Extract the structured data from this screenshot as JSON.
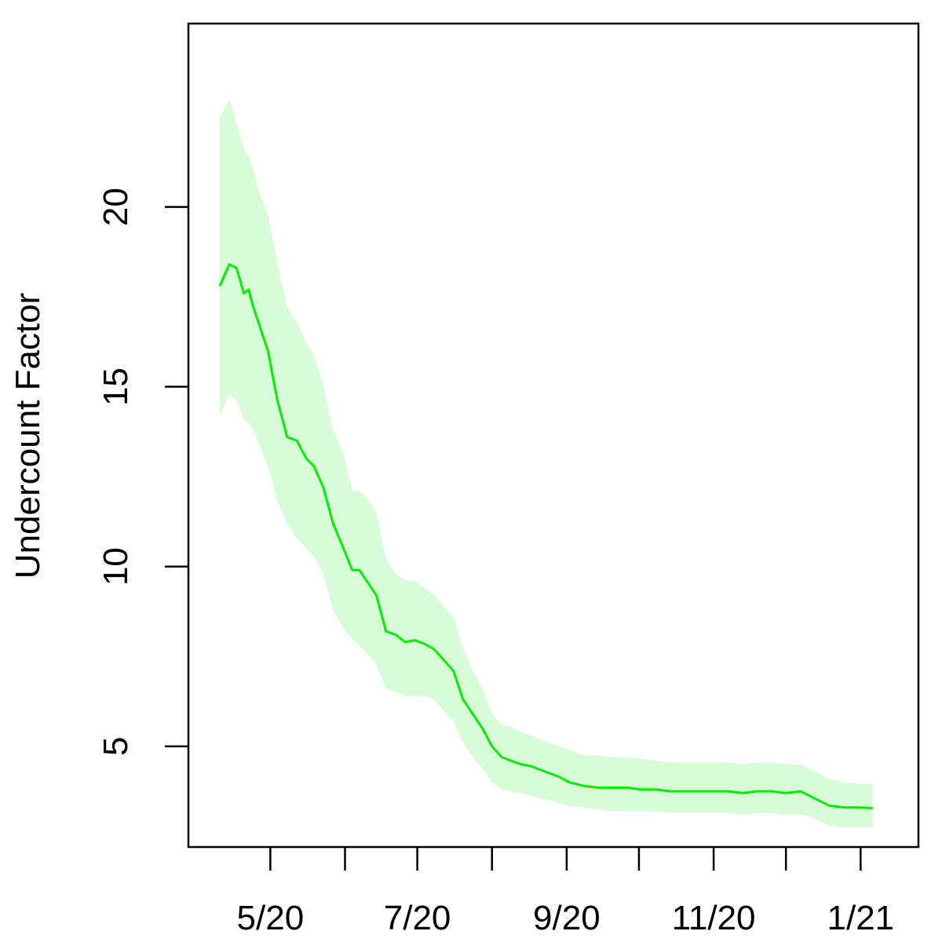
{
  "chart_data": {
    "type": "line",
    "title": "",
    "xlabel": "",
    "ylabel": "Undercount Factor",
    "x_unit": "date",
    "xlim": [
      "2020-03-28",
      "2021-01-25"
    ],
    "ylim": [
      2.2,
      25.1
    ],
    "grid": false,
    "legend": "none",
    "x_tick_labels": [
      {
        "date": "2020-05-01",
        "label": "5/20"
      },
      {
        "date": "2020-07-01",
        "label": "7/20"
      },
      {
        "date": "2020-09-01",
        "label": "9/20"
      },
      {
        "date": "2020-11-01",
        "label": "11/20"
      },
      {
        "date": "2021-01-01",
        "label": "1/21"
      }
    ],
    "x_minor_ticks": [
      "2020-06-01",
      "2020-08-01",
      "2020-10-01",
      "2020-12-01"
    ],
    "y_ticks": [
      5,
      10,
      15,
      20
    ],
    "y_tick_labels": [
      "5",
      "10",
      "15",
      "20"
    ],
    "colors": {
      "line": "#00ee00",
      "band": "#d8fcd8",
      "axis": "#000000"
    },
    "series": [
      {
        "x": [
          "2020-04-10",
          "2020-04-14",
          "2020-04-17",
          "2020-04-20",
          "2020-04-22",
          "2020-04-24",
          "2020-04-27",
          "2020-04-30",
          "2020-05-04",
          "2020-05-08",
          "2020-05-12",
          "2020-05-16",
          "2020-05-19",
          "2020-05-23",
          "2020-05-27",
          "2020-06-01",
          "2020-06-04",
          "2020-06-07",
          "2020-06-10",
          "2020-06-14",
          "2020-06-18",
          "2020-06-22",
          "2020-06-26",
          "2020-06-30",
          "2020-07-04",
          "2020-07-08",
          "2020-07-12",
          "2020-07-16",
          "2020-07-20",
          "2020-07-24",
          "2020-07-28",
          "2020-08-01",
          "2020-08-05",
          "2020-08-09",
          "2020-08-13",
          "2020-08-17",
          "2020-08-21",
          "2020-08-25",
          "2020-08-29",
          "2020-09-02",
          "2020-09-08",
          "2020-09-14",
          "2020-09-20",
          "2020-09-26",
          "2020-10-02",
          "2020-10-08",
          "2020-10-14",
          "2020-10-20",
          "2020-10-26",
          "2020-11-01",
          "2020-11-07",
          "2020-11-13",
          "2020-11-19",
          "2020-11-25",
          "2020-12-01",
          "2020-12-07",
          "2020-12-13",
          "2020-12-19",
          "2020-12-25",
          "2020-12-31",
          "2021-01-06"
        ],
        "y": [
          17.8,
          18.4,
          18.3,
          17.6,
          17.7,
          17.2,
          16.6,
          16.0,
          14.6,
          13.6,
          13.5,
          13.0,
          12.8,
          12.2,
          11.2,
          10.4,
          9.9,
          9.9,
          9.6,
          9.2,
          8.2,
          8.1,
          7.9,
          7.95,
          7.85,
          7.7,
          7.4,
          7.1,
          6.3,
          5.9,
          5.5,
          5.0,
          4.7,
          4.6,
          4.5,
          4.45,
          4.35,
          4.25,
          4.15,
          4.0,
          3.9,
          3.85,
          3.85,
          3.85,
          3.8,
          3.8,
          3.75,
          3.75,
          3.75,
          3.75,
          3.75,
          3.7,
          3.75,
          3.75,
          3.7,
          3.75,
          3.55,
          3.35,
          3.3,
          3.3,
          3.28
        ]
      }
    ],
    "band": {
      "x": [
        "2020-04-10",
        "2020-04-14",
        "2020-04-17",
        "2020-04-20",
        "2020-04-22",
        "2020-04-24",
        "2020-04-27",
        "2020-04-30",
        "2020-05-04",
        "2020-05-08",
        "2020-05-12",
        "2020-05-16",
        "2020-05-19",
        "2020-05-23",
        "2020-05-27",
        "2020-06-01",
        "2020-06-04",
        "2020-06-07",
        "2020-06-10",
        "2020-06-14",
        "2020-06-18",
        "2020-06-22",
        "2020-06-26",
        "2020-06-30",
        "2020-07-04",
        "2020-07-08",
        "2020-07-12",
        "2020-07-16",
        "2020-07-20",
        "2020-07-24",
        "2020-07-28",
        "2020-08-01",
        "2020-08-05",
        "2020-08-09",
        "2020-08-13",
        "2020-08-17",
        "2020-08-21",
        "2020-08-25",
        "2020-08-29",
        "2020-09-02",
        "2020-09-08",
        "2020-09-14",
        "2020-09-20",
        "2020-09-26",
        "2020-10-02",
        "2020-10-08",
        "2020-10-14",
        "2020-10-20",
        "2020-10-26",
        "2020-11-01",
        "2020-11-07",
        "2020-11-13",
        "2020-11-19",
        "2020-11-25",
        "2020-12-01",
        "2020-12-07",
        "2020-12-13",
        "2020-12-19",
        "2020-12-25",
        "2020-12-31",
        "2021-01-06"
      ],
      "lower": [
        14.2,
        14.8,
        14.6,
        14.1,
        14.0,
        13.8,
        13.3,
        12.8,
        11.8,
        11.2,
        10.8,
        10.5,
        10.3,
        9.8,
        8.8,
        8.2,
        8.0,
        7.8,
        7.6,
        7.3,
        6.6,
        6.5,
        6.4,
        6.4,
        6.4,
        6.3,
        6.0,
        5.7,
        5.1,
        4.7,
        4.4,
        4.0,
        3.8,
        3.75,
        3.7,
        3.65,
        3.55,
        3.5,
        3.4,
        3.35,
        3.3,
        3.25,
        3.2,
        3.2,
        3.2,
        3.2,
        3.15,
        3.15,
        3.15,
        3.15,
        3.15,
        3.1,
        3.15,
        3.15,
        3.1,
        3.1,
        3.0,
        2.8,
        2.75,
        2.75,
        2.75
      ],
      "upper": [
        22.5,
        23.0,
        22.3,
        21.6,
        21.4,
        21.0,
        20.3,
        19.8,
        18.4,
        17.2,
        16.8,
        16.2,
        15.9,
        15.0,
        13.8,
        13.0,
        12.1,
        12.1,
        11.9,
        11.5,
        10.2,
        9.8,
        9.6,
        9.6,
        9.4,
        9.2,
        8.9,
        8.6,
        7.7,
        7.1,
        6.6,
        5.9,
        5.6,
        5.55,
        5.4,
        5.3,
        5.2,
        5.1,
        5.0,
        4.9,
        4.75,
        4.75,
        4.7,
        4.7,
        4.65,
        4.6,
        4.55,
        4.55,
        4.55,
        4.55,
        4.55,
        4.5,
        4.55,
        4.55,
        4.5,
        4.5,
        4.3,
        4.1,
        4.0,
        3.95,
        3.95
      ]
    }
  }
}
